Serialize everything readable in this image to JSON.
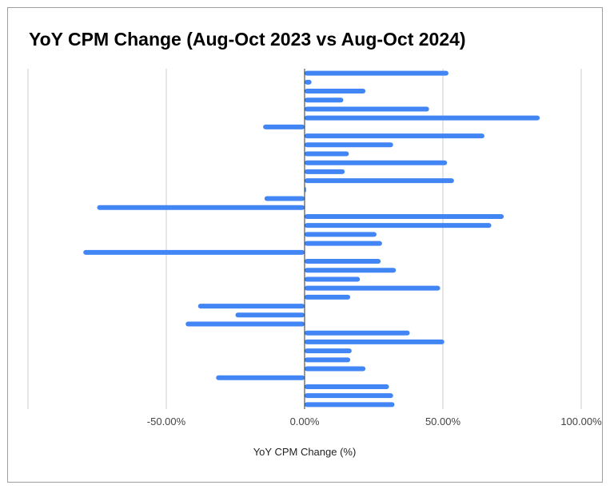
{
  "chart_data": {
    "type": "bar",
    "orientation": "horizontal",
    "title": "YoY CPM Change (Aug-Oct 2023 vs Aug-Oct 2024)",
    "xlabel": "YoY CPM Change (%)",
    "ylabel": "",
    "xlim": [
      -1.0,
      1.0
    ],
    "x_ticks": [
      -0.5,
      0.0,
      0.5,
      1.0
    ],
    "x_tick_labels": [
      "-50.00%",
      "0.00%",
      "50.00%",
      "100.00%"
    ],
    "grid": true,
    "bar_color": "#4285f4",
    "values": [
      0.52,
      0.025,
      0.22,
      0.14,
      0.45,
      0.85,
      -0.15,
      0.65,
      0.32,
      0.16,
      0.515,
      0.145,
      0.54,
      0.005,
      -0.145,
      -0.75,
      0.72,
      0.675,
      0.26,
      0.28,
      -0.8,
      0.275,
      0.33,
      0.2,
      0.49,
      0.165,
      -0.385,
      -0.25,
      -0.43,
      0.38,
      0.505,
      0.17,
      0.165,
      0.22,
      -0.32,
      0.305,
      0.32,
      0.325
    ]
  }
}
